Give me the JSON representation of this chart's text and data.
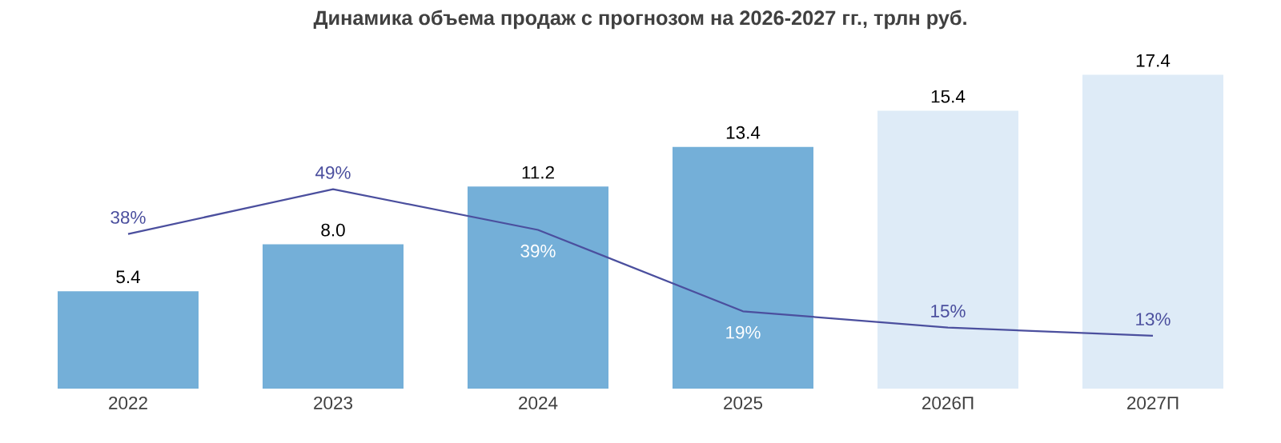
{
  "chart_data": {
    "type": "bar",
    "title": "Динамика объема продаж с прогнозом на 2026-2027 гг., трлн руб.",
    "categories": [
      "2022",
      "2023",
      "2024",
      "2025",
      "2026П",
      "2027П"
    ],
    "series": [
      {
        "colors": [
          "#74afd8",
          "#74afd8",
          "#74afd8",
          "#74afd8",
          "#deebf7",
          "#deebf7"
        ],
        "values": [
          5.4,
          8.0,
          11.2,
          13.4,
          15.4,
          17.4
        ],
        "value_labels": [
          "5.4",
          "8.0",
          "11.2",
          "13.4",
          "15.4",
          "17.4"
        ]
      },
      {
        "type": "line",
        "axis": "y2",
        "color": "#4b4f9e",
        "values": [
          38,
          49,
          39,
          19,
          15,
          13
        ],
        "value_labels": [
          "38%",
          "49%",
          "39%",
          "19%",
          "15%",
          "13%"
        ]
      }
    ],
    "marker": "none"
  }
}
